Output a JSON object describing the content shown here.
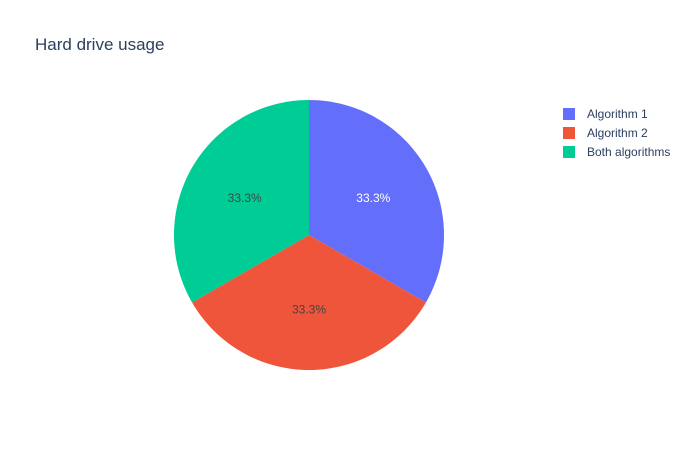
{
  "chart_data": {
    "type": "pie",
    "title": "Hard drive usage",
    "labels": [
      "Algorithm 1",
      "Algorithm 2",
      "Both algorithms"
    ],
    "values": [
      33.3,
      33.3,
      33.3
    ],
    "value_labels": [
      "33.3%",
      "33.3%",
      "33.3%"
    ],
    "colors": [
      "#636efa",
      "#ef553b",
      "#00cc96"
    ],
    "label_colors": [
      "#ffffff",
      "#444444",
      "#444444"
    ],
    "direction": "clockwise",
    "start_angle": "top",
    "legend_placement": "top-right"
  }
}
